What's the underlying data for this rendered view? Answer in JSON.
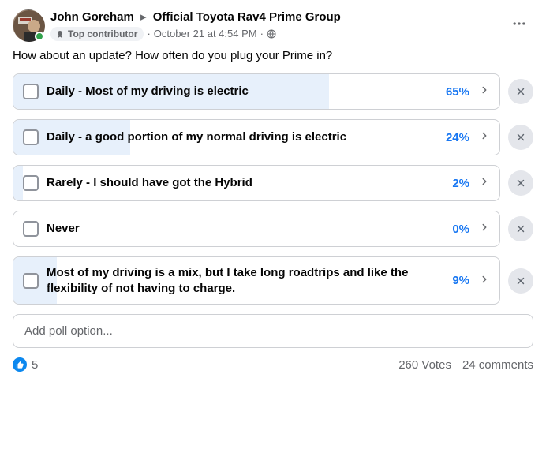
{
  "author": "John Goreham",
  "group": "Official Toyota Rav4 Prime Group",
  "badge_label": "Top contributor",
  "timestamp": "October 21 at 4:54 PM",
  "body": "How about an update? How often do you plug your Prime in?",
  "options": [
    {
      "label": "Daily - Most of my driving is electric",
      "pct": "65%",
      "fill": 65
    },
    {
      "label": "Daily - a good portion of my normal driving is electric",
      "pct": "24%",
      "fill": 24
    },
    {
      "label": "Rarely - I should have got the Hybrid",
      "pct": "2%",
      "fill": 2
    },
    {
      "label": "Never",
      "pct": "0%",
      "fill": 0
    },
    {
      "label": "Most of my driving is a mix, but I take long roadtrips and like the flexibility of not having to charge.",
      "pct": "9%",
      "fill": 9
    }
  ],
  "add_option_placeholder": "Add poll option...",
  "like_count": "5",
  "votes_text": "260 Votes",
  "comments_text": "24 comments",
  "colors": {
    "accent": "#1877f2",
    "fill_bg": "#e7f0fb",
    "border": "#ced0d4",
    "muted": "#65676b",
    "remove_bg": "#e4e6eb",
    "like_blue": "#0c88ef"
  }
}
